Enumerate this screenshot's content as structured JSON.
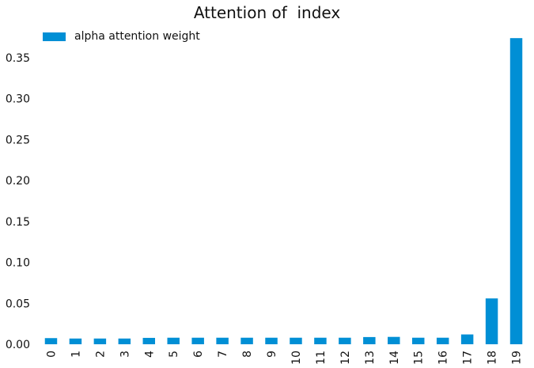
{
  "chart_data": {
    "type": "bar",
    "title": "Attention of  index",
    "xlabel": "",
    "ylabel": "",
    "categories": [
      "0",
      "1",
      "2",
      "3",
      "4",
      "5",
      "6",
      "7",
      "8",
      "9",
      "10",
      "11",
      "12",
      "13",
      "14",
      "15",
      "16",
      "17",
      "18",
      "19"
    ],
    "series": [
      {
        "name": "alpha attention weight",
        "color": "#008fd5",
        "values": [
          0.0075,
          0.007,
          0.007,
          0.007,
          0.0078,
          0.008,
          0.008,
          0.008,
          0.008,
          0.008,
          0.008,
          0.008,
          0.008,
          0.0088,
          0.009,
          0.008,
          0.008,
          0.012,
          0.056,
          0.374
        ]
      }
    ],
    "ylim": [
      0,
      0.38
    ],
    "yticks": [
      "0.00",
      "0.05",
      "0.10",
      "0.15",
      "0.20",
      "0.25",
      "0.30",
      "0.35"
    ],
    "ytick_values": [
      0,
      0.05,
      0.1,
      0.15,
      0.2,
      0.25,
      0.3,
      0.35
    ],
    "grid": false,
    "legend_position": "top-left"
  }
}
